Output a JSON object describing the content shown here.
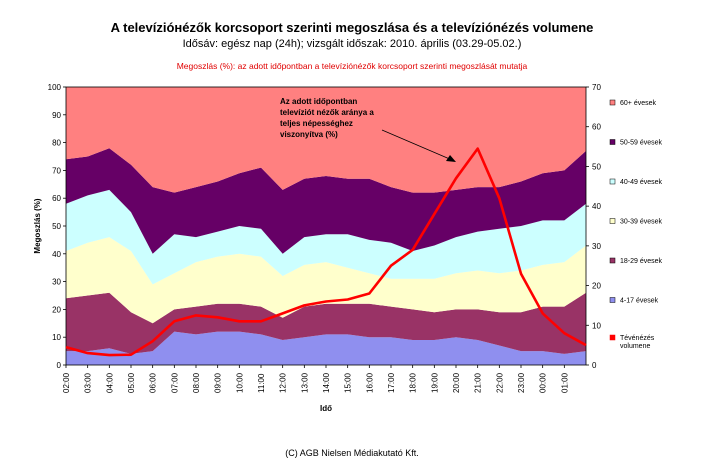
{
  "chart_data": {
    "type": "area",
    "stacked": true,
    "title": "A televízióнézők korcsoport szerinti megoszlása és a televíziónézés volumene",
    "subtitle": "Idősáv: egész nap (24h); vizsgált időszak: 2010. április (03.29-05.02.)",
    "note": "Megoszlás (%): az adott időpontban a televíziónézők korcsoport szerinti megoszlását mutatja",
    "footer": "(C) AGB Nielsen Médiakutató Kft.",
    "xlabel": "Idő",
    "ylabel": "Megoszlás (%)",
    "ylim": [
      0,
      100
    ],
    "y2lim": [
      0,
      70
    ],
    "y_ticks": [
      0,
      10,
      20,
      30,
      40,
      50,
      60,
      70,
      80,
      90,
      100
    ],
    "y2_ticks": [
      0,
      10,
      20,
      30,
      40,
      50,
      60,
      70
    ],
    "x_ticks": [
      "02:00",
      "03:00",
      "04:00",
      "05:00",
      "06:00",
      "07:00",
      "08:00",
      "09:00",
      "10:00",
      "11:00",
      "12:00",
      "13:00",
      "14:00",
      "15:00",
      "16:00",
      "17:00",
      "18:00",
      "19:00",
      "20:00",
      "21:00",
      "22:00",
      "23:00",
      "00:00",
      "01:00"
    ],
    "x": [
      2,
      3,
      4,
      5,
      6,
      7,
      8,
      9,
      10,
      11,
      12,
      13,
      14,
      15,
      16,
      17,
      18,
      19,
      20,
      21,
      22,
      23,
      24,
      25,
      26
    ],
    "series": [
      {
        "name": "4-17 évesek",
        "color": "#8f8fef",
        "values": [
          5,
          5,
          6,
          4,
          5,
          12,
          11,
          12,
          12,
          11,
          9,
          10,
          11,
          11,
          10,
          10,
          9,
          9,
          10,
          9,
          7,
          5,
          5,
          4,
          5
        ]
      },
      {
        "name": "18-29 évesek",
        "color": "#993366",
        "values": [
          19,
          20,
          20,
          15,
          10,
          8,
          10,
          10,
          10,
          10,
          8,
          11,
          11,
          11,
          12,
          11,
          11,
          10,
          10,
          11,
          12,
          14,
          16,
          17,
          21
        ]
      },
      {
        "name": "30-39 évesek",
        "color": "#ffffcc",
        "values": [
          17,
          19,
          20,
          22,
          14,
          13,
          16,
          17,
          18,
          18,
          15,
          15,
          15,
          13,
          11,
          10,
          11,
          12,
          13,
          14,
          14,
          15,
          15,
          16,
          17
        ]
      },
      {
        "name": "40-49 évesek",
        "color": "#ccffff",
        "values": [
          17,
          17,
          17,
          14,
          11,
          14,
          9,
          9,
          10,
          10,
          8,
          10,
          10,
          12,
          12,
          13,
          10,
          12,
          13,
          14,
          16,
          16,
          16,
          15,
          15
        ]
      },
      {
        "name": "50-59 évesek",
        "color": "#660066",
        "values": [
          16,
          14,
          15,
          17,
          24,
          15,
          18,
          18,
          19,
          22,
          23,
          21,
          21,
          20,
          22,
          20,
          21,
          19,
          17,
          16,
          15,
          16,
          17,
          18,
          19
        ]
      },
      {
        "name": "60+ évesek",
        "color": "#ff8080",
        "values": [
          26,
          25,
          22,
          28,
          36,
          38,
          36,
          34,
          31,
          29,
          37,
          33,
          32,
          33,
          33,
          36,
          38,
          38,
          37,
          36,
          36,
          34,
          31,
          30,
          23
        ]
      }
    ],
    "volume_series": {
      "name": "Tévénézés volumene",
      "color": "#ff0000",
      "axis": "right",
      "values": [
        4.5,
        3,
        2.5,
        2.6,
        6,
        11,
        12.5,
        12,
        11,
        11,
        13,
        15,
        16,
        16.5,
        18,
        25,
        29,
        38,
        47,
        54.5,
        42,
        23,
        13,
        8,
        5
      ]
    },
    "annotation": "Az adott időpontban televíziót nézők aránya a teljes népességhez viszonyítva (%)",
    "legend_position": "right"
  }
}
